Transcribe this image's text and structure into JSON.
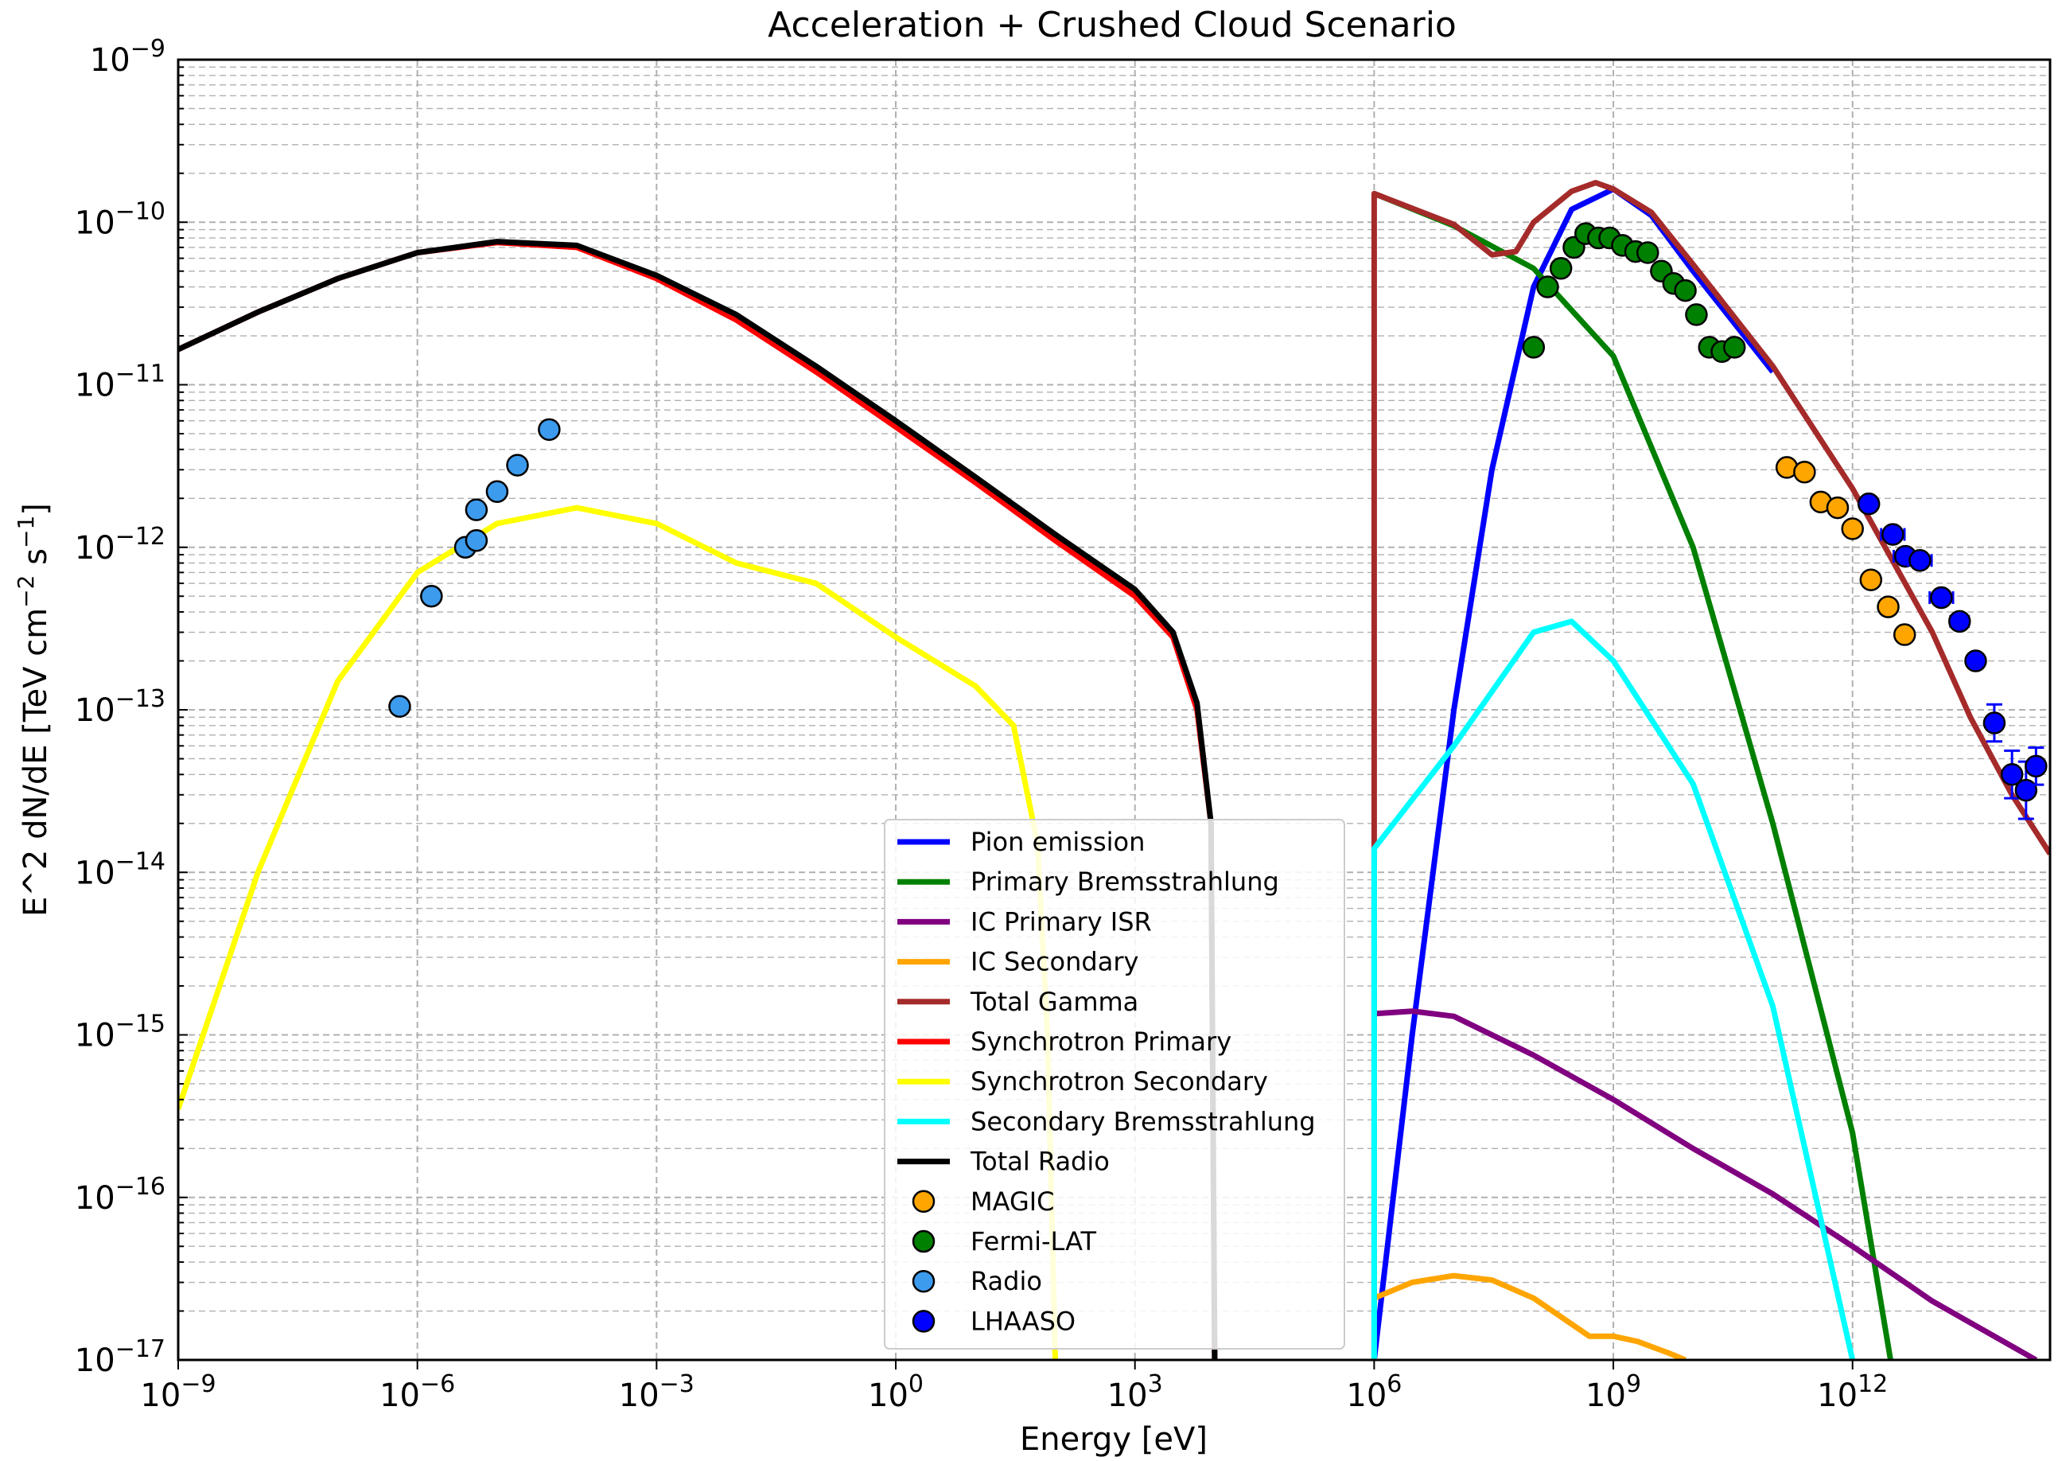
{
  "chart_data": {
    "type": "line",
    "title": "Acceleration + Crushed Cloud Scenario",
    "xlabel": "Energy [eV]",
    "ylabel_main": "E^2 dN/dE [TeV cm",
    "ylabel_mid": " s",
    "ylabel_end": "]",
    "ylabel_sup1": "−2",
    "ylabel_sup2": "−1",
    "xscale": "log",
    "yscale": "log",
    "xlim": [
      1e-09,
      300000000000000.0
    ],
    "ylim": [
      1e-17,
      1e-09
    ],
    "grid": true,
    "legend_position": "lower-center",
    "x_ticks": [
      {
        "base": "10",
        "exp": "−9",
        "value": 1e-09
      },
      {
        "base": "10",
        "exp": "−6",
        "value": 1e-06
      },
      {
        "base": "10",
        "exp": "−3",
        "value": 0.001
      },
      {
        "base": "10",
        "exp": "0",
        "value": 1
      },
      {
        "base": "10",
        "exp": "3",
        "value": 1000.0
      },
      {
        "base": "10",
        "exp": "6",
        "value": 1000000.0
      },
      {
        "base": "10",
        "exp": "9",
        "value": 1000000000.0
      },
      {
        "base": "10",
        "exp": "12",
        "value": 1000000000000.0
      }
    ],
    "y_ticks": [
      {
        "base": "10",
        "exp": "−9",
        "value": 1e-09
      },
      {
        "base": "10",
        "exp": "−10",
        "value": 1e-10
      },
      {
        "base": "10",
        "exp": "−11",
        "value": 1e-11
      },
      {
        "base": "10",
        "exp": "−12",
        "value": 1e-12
      },
      {
        "base": "10",
        "exp": "−13",
        "value": 1e-13
      },
      {
        "base": "10",
        "exp": "−14",
        "value": 1e-14
      },
      {
        "base": "10",
        "exp": "−15",
        "value": 1e-15
      },
      {
        "base": "10",
        "exp": "−16",
        "value": 1e-16
      },
      {
        "base": "10",
        "exp": "−17",
        "value": 1e-17
      }
    ],
    "series": [
      {
        "name": "Pion emission",
        "color": "#0000ff",
        "kind": "line",
        "points": [
          [
            1000000.0,
            1e-17
          ],
          [
            3000000.0,
            1e-15
          ],
          [
            10000000.0,
            1e-13
          ],
          [
            30000000.0,
            3e-12
          ],
          [
            100000000.0,
            4e-11
          ],
          [
            300000000.0,
            1.2e-10
          ],
          [
            1000000000.0,
            1.6e-10
          ],
          [
            3000000000.0,
            1.1e-10
          ],
          [
            10000000000.0,
            5e-11
          ],
          [
            100000000000.0,
            1.2e-11
          ]
        ]
      },
      {
        "name": "Primary Bremsstrahlung",
        "color": "#008000",
        "kind": "line",
        "points": [
          [
            1000000.0,
            1.5e-10
          ],
          [
            10000000.0,
            9.5e-11
          ],
          [
            100000000.0,
            5.2e-11
          ],
          [
            1000000000.0,
            1.5e-11
          ],
          [
            10000000000.0,
            1e-12
          ],
          [
            100000000000.0,
            2e-14
          ],
          [
            1000000000000.0,
            2.5e-16
          ],
          [
            3000000000000.0,
            1e-17
          ]
        ]
      },
      {
        "name": "IC Primary ISR",
        "color": "#800080",
        "kind": "line",
        "points": [
          [
            1000000.0,
            1.35e-15
          ],
          [
            3000000.0,
            1.4e-15
          ],
          [
            10000000.0,
            1.3e-15
          ],
          [
            100000000.0,
            7.5e-16
          ],
          [
            1000000000.0,
            4e-16
          ],
          [
            10000000000.0,
            2e-16
          ],
          [
            100000000000.0,
            1.05e-16
          ],
          [
            1000000000000.0,
            5e-17
          ],
          [
            10000000000000.0,
            2.3e-17
          ],
          [
            200000000000000.0,
            1e-17
          ]
        ]
      },
      {
        "name": "IC Secondary",
        "color": "#ffa500",
        "kind": "line",
        "points": [
          [
            1000000.0,
            2.4e-17
          ],
          [
            3000000.0,
            3e-17
          ],
          [
            10000000.0,
            3.3e-17
          ],
          [
            30000000.0,
            3.1e-17
          ],
          [
            100000000.0,
            2.4e-17
          ],
          [
            500000000.0,
            1.4e-17
          ],
          [
            1000000000.0,
            1.4e-17
          ],
          [
            2000000000.0,
            1.3e-17
          ],
          [
            5000000000.0,
            1.1e-17
          ],
          [
            8000000000.0,
            1e-17
          ]
        ]
      },
      {
        "name": "Total Gamma",
        "color": "#a52a2a",
        "kind": "line",
        "points": [
          [
            1000000.0,
            1e-17
          ],
          [
            1000000.0,
            1.5e-10
          ],
          [
            10000000.0,
            9.7e-11
          ],
          [
            30000000.0,
            6.3e-11
          ],
          [
            60000000.0,
            6.6e-11
          ],
          [
            100000000.0,
            1e-10
          ],
          [
            300000000.0,
            1.55e-10
          ],
          [
            600000000.0,
            1.75e-10
          ],
          [
            1000000000.0,
            1.6e-10
          ],
          [
            3000000000.0,
            1.15e-10
          ],
          [
            10000000000.0,
            5.5e-11
          ],
          [
            100000000000.0,
            1.3e-11
          ],
          [
            1000000000000.0,
            2.3e-12
          ],
          [
            10000000000000.0,
            3e-13
          ],
          [
            30000000000000.0,
            9e-14
          ],
          [
            100000000000000.0,
            3e-14
          ],
          [
            300000000000000.0,
            1.3e-14
          ]
        ]
      },
      {
        "name": "Synchrotron Primary",
        "color": "#ff0000",
        "kind": "line",
        "points": [
          [
            1e-09,
            1.65e-11
          ],
          [
            1e-08,
            2.8e-11
          ],
          [
            1e-07,
            4.5e-11
          ],
          [
            1e-06,
            6.5e-11
          ],
          [
            1e-05,
            7.5e-11
          ],
          [
            0.0001,
            7e-11
          ],
          [
            0.001,
            4.5e-11
          ],
          [
            0.01,
            2.5e-11
          ],
          [
            0.1,
            1.2e-11
          ],
          [
            1,
            5.5e-12
          ],
          [
            10,
            2.5e-12
          ],
          [
            100,
            1.1e-12
          ],
          [
            1000,
            5e-13
          ],
          [
            3000,
            2.8e-13
          ],
          [
            6000,
            1e-13
          ],
          [
            9000,
            2e-14
          ],
          [
            10000,
            1e-17
          ]
        ]
      },
      {
        "name": "Synchrotron Secondary",
        "color": "#ffff00",
        "kind": "line",
        "points": [
          [
            1e-09,
            3.5e-16
          ],
          [
            1e-08,
            1e-14
          ],
          [
            1e-07,
            1.5e-13
          ],
          [
            1e-06,
            7e-13
          ],
          [
            1e-05,
            1.4e-12
          ],
          [
            0.0001,
            1.75e-12
          ],
          [
            0.001,
            1.4e-12
          ],
          [
            0.01,
            8e-13
          ],
          [
            0.1,
            6e-13
          ],
          [
            1,
            2.8e-13
          ],
          [
            10,
            1.4e-13
          ],
          [
            30,
            8e-14
          ],
          [
            60,
            1.5e-14
          ],
          [
            80,
            1e-15
          ],
          [
            100,
            1e-17
          ]
        ]
      },
      {
        "name": "Secondary Bremsstrahlung",
        "color": "#00ffff",
        "kind": "line",
        "points": [
          [
            1000000.0,
            1e-17
          ],
          [
            1000000.0,
            1.4e-14
          ],
          [
            10000000.0,
            6e-14
          ],
          [
            100000000.0,
            3e-13
          ],
          [
            300000000.0,
            3.5e-13
          ],
          [
            1000000000.0,
            2e-13
          ],
          [
            10000000000.0,
            3.5e-14
          ],
          [
            100000000000.0,
            1.5e-15
          ],
          [
            1000000000000.0,
            1e-17
          ]
        ]
      },
      {
        "name": "Total Radio",
        "color": "#000000",
        "kind": "line",
        "points": [
          [
            1e-09,
            1.65e-11
          ],
          [
            1e-08,
            2.8e-11
          ],
          [
            1e-07,
            4.5e-11
          ],
          [
            1e-06,
            6.5e-11
          ],
          [
            1e-05,
            7.6e-11
          ],
          [
            0.0001,
            7.2e-11
          ],
          [
            0.001,
            4.7e-11
          ],
          [
            0.01,
            2.7e-11
          ],
          [
            0.1,
            1.3e-11
          ],
          [
            1,
            6e-12
          ],
          [
            10,
            2.7e-12
          ],
          [
            100,
            1.2e-12
          ],
          [
            1000,
            5.5e-13
          ],
          [
            3000,
            3e-13
          ],
          [
            6000,
            1.1e-13
          ],
          [
            9000,
            2e-14
          ],
          [
            10000,
            1e-17
          ]
        ]
      },
      {
        "name": "MAGIC",
        "color": "#ffa500",
        "kind": "points",
        "points": [
          [
            150000000000.0,
            3.1e-12
          ],
          [
            250000000000.0,
            2.9e-12
          ],
          [
            400000000000.0,
            1.9e-12
          ],
          [
            650000000000.0,
            1.75e-12
          ],
          [
            1000000000000.0,
            1.3e-12
          ],
          [
            1700000000000.0,
            6.3e-13
          ],
          [
            2800000000000.0,
            4.3e-13
          ],
          [
            4500000000000.0,
            2.9e-13
          ]
        ]
      },
      {
        "name": "Fermi-LAT",
        "color": "#008000",
        "kind": "points",
        "points": [
          [
            100000000.0,
            1.7e-11
          ],
          [
            150000000.0,
            4e-11
          ],
          [
            220000000.0,
            5.2e-11
          ],
          [
            320000000.0,
            7e-11
          ],
          [
            450000000.0,
            8.5e-11
          ],
          [
            650000000.0,
            8e-11
          ],
          [
            900000000.0,
            8e-11
          ],
          [
            1300000000.0,
            7.2e-11
          ],
          [
            1900000000.0,
            6.6e-11
          ],
          [
            2700000000.0,
            6.5e-11
          ],
          [
            4000000000.0,
            5e-11
          ],
          [
            5700000000.0,
            4.2e-11
          ],
          [
            8000000000.0,
            3.8e-11
          ],
          [
            11000000000.0,
            2.7e-11
          ],
          [
            16000000000.0,
            1.7e-11
          ],
          [
            23000000000.0,
            1.6e-11
          ],
          [
            33000000000.0,
            1.7e-11
          ]
        ]
      },
      {
        "name": "Radio",
        "color": "#3c9bed",
        "kind": "points",
        "points": [
          [
            6e-07,
            1.05e-13
          ],
          [
            1.5e-06,
            5e-13
          ],
          [
            4e-06,
            1e-12
          ],
          [
            5.5e-06,
            1.1e-12
          ],
          [
            5.5e-06,
            1.7e-12
          ],
          [
            1e-05,
            2.2e-12
          ],
          [
            1.8e-05,
            3.2e-12
          ],
          [
            4.5e-05,
            5.3e-12
          ]
        ]
      },
      {
        "name": "LHAASO",
        "color": "#0000ff",
        "kind": "errorbars",
        "points": [
          [
            1600000000000.0,
            1.85e-12,
            1.2,
            0.1
          ],
          [
            3200000000000.0,
            1.2e-12,
            1.4,
            0.1
          ],
          [
            4600000000000.0,
            8.8e-13,
            1.4,
            0.1
          ],
          [
            7000000000000.0,
            8.3e-13,
            1.4,
            0.1
          ],
          [
            13000000000000.0,
            4.9e-13,
            1.4,
            0.1
          ],
          [
            22000000000000.0,
            3.5e-13,
            1.3,
            0.1
          ],
          [
            35000000000000.0,
            2e-13,
            1.2,
            0.1
          ],
          [
            60000000000000.0,
            8.3e-14,
            1.2,
            1.3
          ],
          [
            100000000000000.0,
            4e-14,
            1.2,
            1.4
          ],
          [
            150000000000000.0,
            3.2e-14,
            1.2,
            1.5
          ],
          [
            200000000000000.0,
            4.5e-14,
            1.1,
            1.3
          ]
        ]
      }
    ]
  }
}
